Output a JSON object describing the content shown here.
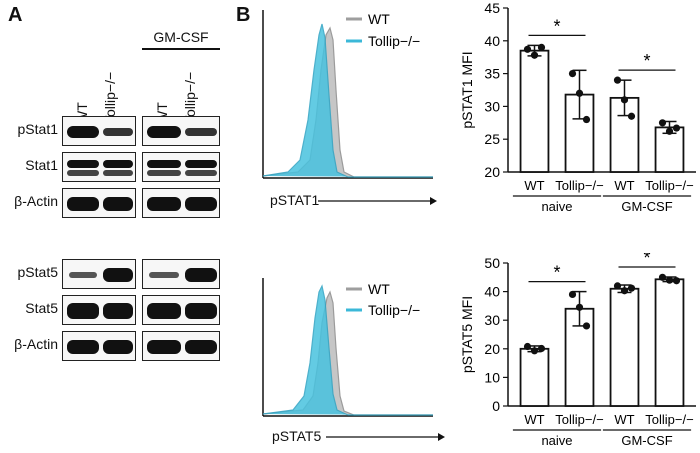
{
  "panelA": {
    "letter": "A",
    "treatment_label": "GM-CSF",
    "columns": [
      "WT",
      "Tollip−/−",
      "WT",
      "Tollip−/−"
    ],
    "rows_top": [
      "pStat1",
      "Stat1",
      "β-Actin"
    ],
    "rows_bottom": [
      "pStat5",
      "Stat5",
      "β-Actin"
    ]
  },
  "panelB": {
    "letter": "B",
    "hist1": {
      "xlabel": "pSTAT1",
      "legend": [
        "WT",
        "Tollip−/−"
      ]
    },
    "hist2": {
      "xlabel": "pSTAT5",
      "legend": [
        "WT",
        "Tollip−/−"
      ]
    }
  },
  "colors": {
    "wt": "#9e9e9e",
    "tollip": "#3bb8d8",
    "tollip_fill": "#48c2df"
  },
  "chart_data": [
    {
      "type": "bar",
      "ylabel": "pSTAT1  MFI",
      "ylim": [
        20,
        45
      ],
      "yticks": [
        20,
        25,
        30,
        35,
        40,
        45
      ],
      "categories": [
        "WT",
        "Tollip−/−",
        "WT",
        "Tollip−/−"
      ],
      "groups": [
        "naive",
        "GM-CSF"
      ],
      "values": [
        38.5,
        31.8,
        31.3,
        26.8
      ],
      "errors": [
        0.8,
        3.7,
        2.7,
        0.9
      ],
      "points": [
        [
          38.7,
          37.8,
          39.0
        ],
        [
          35.0,
          32.0,
          28.0
        ],
        [
          34.0,
          31.0,
          28.5
        ],
        [
          27.5,
          26.2,
          26.7
        ]
      ],
      "significance": [
        {
          "between": [
            0,
            1
          ],
          "label": "*"
        },
        {
          "between": [
            2,
            3
          ],
          "label": "*"
        }
      ]
    },
    {
      "type": "bar",
      "ylabel": "pSTAT5  MFI",
      "ylim": [
        0,
        50
      ],
      "yticks": [
        0,
        10,
        20,
        30,
        40,
        50
      ],
      "categories": [
        "WT",
        "Tollip−/−",
        "WT",
        "Tollip−/−"
      ],
      "groups": [
        "naive",
        "GM-CSF"
      ],
      "values": [
        20.0,
        34.0,
        41.0,
        44.3
      ],
      "errors": [
        1.0,
        6.0,
        1.3,
        0.8
      ],
      "points": [
        [
          20.8,
          19.3,
          20.1
        ],
        [
          39.0,
          34.5,
          28.0
        ],
        [
          42.0,
          40.3,
          41.2
        ],
        [
          45.0,
          44.0,
          43.8
        ]
      ],
      "significance": [
        {
          "between": [
            0,
            1
          ],
          "label": "*"
        },
        {
          "between": [
            2,
            3
          ],
          "label": "*"
        }
      ]
    }
  ]
}
